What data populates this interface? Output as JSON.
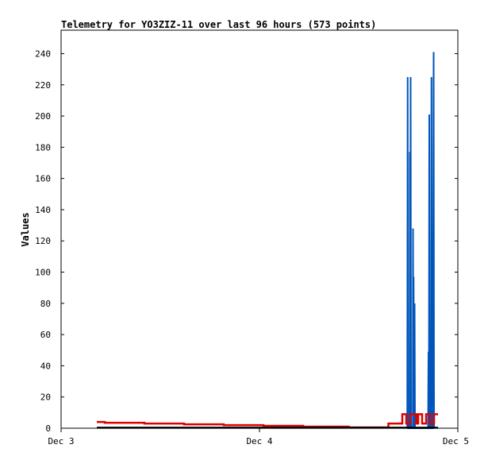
{
  "chart_data": {
    "type": "line",
    "title": "Telemetry for YO3ZIZ-11 over last 96 hours (573 points)",
    "xlabel": "",
    "ylabel": "Values",
    "xlim": [
      "Dec 3",
      "Dec 5"
    ],
    "ylim": [
      0,
      255
    ],
    "x_ticks": [
      "Dec 3",
      "Dec 4",
      "Dec 5"
    ],
    "y_ticks": [
      0,
      20,
      40,
      60,
      80,
      100,
      120,
      140,
      160,
      180,
      200,
      220,
      240
    ],
    "grid": false,
    "legend": "none",
    "series": [
      {
        "color": "#0055bb",
        "x": [
          1.745,
          1.747,
          1.747,
          1.749,
          1.757,
          1.758,
          1.758,
          1.76,
          1.76,
          1.762,
          1.762,
          1.764,
          1.765,
          1.767,
          1.768,
          1.77,
          1.773,
          1.774,
          1.774,
          1.776,
          1.776,
          1.777,
          1.777,
          1.779,
          1.78,
          1.782,
          1.782,
          1.784,
          1.784,
          1.786,
          1.793,
          1.794,
          1.794,
          1.796,
          1.797,
          1.799,
          1.799,
          1.8,
          1.8,
          1.802,
          1.802,
          1.804,
          1.85,
          1.852,
          1.852,
          1.854,
          1.854,
          1.856,
          1.856,
          1.858,
          1.858,
          1.86,
          1.865,
          1.867,
          1.867,
          1.869,
          1.869,
          1.871,
          1.874,
          1.876,
          1.876,
          1.878,
          1.878,
          1.88
        ],
        "y": [
          0,
          225,
          225,
          0,
          0,
          177,
          177,
          0,
          0,
          225,
          225,
          0,
          0,
          0,
          0,
          0,
          0,
          128,
          128,
          0,
          0,
          97,
          97,
          0,
          0,
          80,
          80,
          0,
          0,
          0,
          0,
          0,
          0,
          0,
          0,
          0,
          0,
          0,
          0,
          0,
          0,
          0,
          0,
          49,
          49,
          0,
          0,
          201,
          201,
          0,
          0,
          0,
          0,
          225,
          225,
          0,
          0,
          0,
          0,
          120,
          120,
          241,
          241,
          0
        ]
      },
      {
        "color": "#dd0000",
        "x": [
          0.18,
          0.22,
          0.22,
          0.42,
          0.42,
          0.62,
          0.62,
          0.82,
          0.82,
          1.02,
          1.02,
          1.22,
          1.22,
          1.45,
          1.45,
          1.65,
          1.65,
          1.72,
          1.72,
          1.74,
          1.74,
          1.76,
          1.76,
          1.79,
          1.79,
          1.8,
          1.8,
          1.82,
          1.82,
          1.84,
          1.84,
          1.86,
          1.86,
          1.88,
          1.88,
          1.9
        ],
        "y": [
          4,
          4,
          3.5,
          3.5,
          3,
          3,
          2.5,
          2.5,
          2,
          2,
          1.5,
          1.5,
          1,
          1,
          0.5,
          0.5,
          3,
          3,
          9,
          9,
          3,
          3,
          9,
          9,
          3,
          3,
          9,
          9,
          3,
          3,
          9,
          9,
          3,
          3,
          9,
          9
        ]
      },
      {
        "color": "#000000",
        "x": [
          0.18,
          1.9
        ],
        "y": [
          0.3,
          0.3
        ]
      }
    ]
  }
}
